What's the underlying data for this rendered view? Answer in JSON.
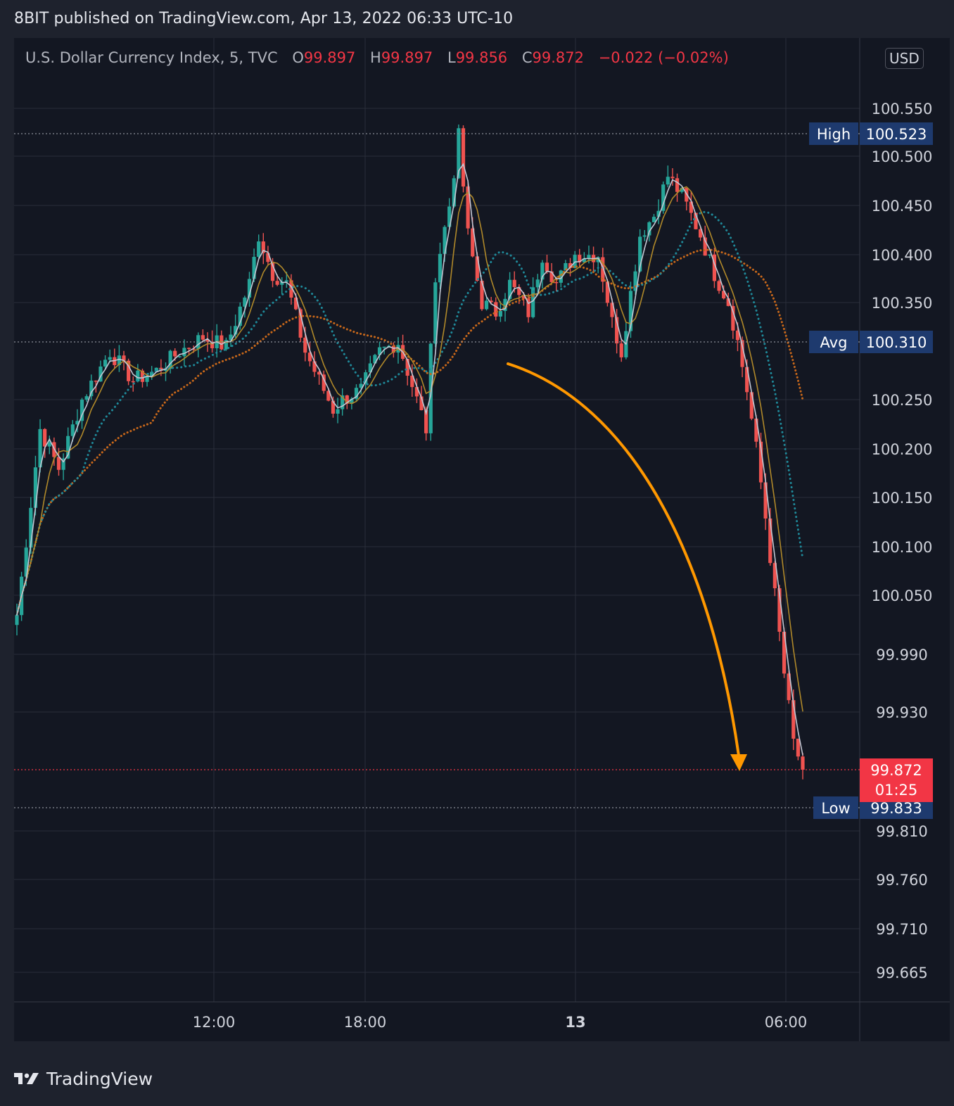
{
  "publish_line": "8BIT published on TradingView.com, Apr 13, 2022 06:33 UTC-10",
  "legend": {
    "symbol": "U.S. Dollar Currency Index, 5, TVC",
    "o_key": "O",
    "o": "99.897",
    "h_key": "H",
    "h": "99.897",
    "l_key": "L",
    "l": "99.856",
    "c_key": "C",
    "c": "99.872",
    "change": "−0.022 (−0.02%)"
  },
  "currency": "USD",
  "footer_brand": "TradingView",
  "colors": {
    "background": "#131722",
    "up": "#26a69a",
    "down": "#ef5350",
    "ma_fast": "#c3c8d4",
    "ma_slow": "#b0892a",
    "ma_teal": "#1f8a9a",
    "ma_orange": "#c9681a",
    "arrow": "#ff9800",
    "label_navy": "#1e3a6e",
    "last_price": "#f23645"
  },
  "chart_data": {
    "type": "candlestick",
    "title": "U.S. Dollar Currency Index, 5, TVC",
    "xlabel": "",
    "ylabel": "",
    "x_ticks": [
      "12:00",
      "18:00",
      "13",
      "06:00"
    ],
    "y_ticks": [
      "100.550",
      "100.500",
      "100.450",
      "100.400",
      "100.350",
      "100.250",
      "100.200",
      "100.150",
      "100.100",
      "100.050",
      "99.990",
      "99.930",
      "99.810",
      "99.760",
      "99.710",
      "99.665"
    ],
    "ylim": [
      99.64,
      100.61
    ],
    "grid": true,
    "markers": [
      {
        "label": "High",
        "value": "100.523"
      },
      {
        "label": "Avg",
        "value": "100.310"
      },
      {
        "label": "Low",
        "value": "99.833"
      }
    ],
    "last_price": {
      "value": "99.872",
      "countdown": "01:25"
    },
    "close_path": [
      [
        0,
        100.03
      ],
      [
        5,
        100.22
      ],
      [
        9,
        100.18
      ],
      [
        14,
        100.25
      ],
      [
        20,
        100.3
      ],
      [
        25,
        100.27
      ],
      [
        30,
        100.28
      ],
      [
        35,
        100.3
      ],
      [
        40,
        100.315
      ],
      [
        45,
        100.305
      ],
      [
        50,
        100.37
      ],
      [
        52,
        100.42
      ],
      [
        55,
        100.38
      ],
      [
        58,
        100.37
      ],
      [
        62,
        100.3
      ],
      [
        65,
        100.27
      ],
      [
        68,
        100.24
      ],
      [
        70,
        100.25
      ],
      [
        74,
        100.26
      ],
      [
        78,
        100.3
      ],
      [
        82,
        100.31
      ],
      [
        86,
        100.25
      ],
      [
        88,
        100.22
      ],
      [
        90,
        100.38
      ],
      [
        93,
        100.45
      ],
      [
        95,
        100.52
      ],
      [
        97,
        100.42
      ],
      [
        100,
        100.35
      ],
      [
        103,
        100.34
      ],
      [
        106,
        100.37
      ],
      [
        110,
        100.34
      ],
      [
        113,
        100.4
      ],
      [
        116,
        100.37
      ],
      [
        120,
        100.4
      ],
      [
        125,
        100.4
      ],
      [
        128,
        100.33
      ],
      [
        130,
        100.3
      ],
      [
        132,
        100.36
      ],
      [
        134,
        100.42
      ],
      [
        137,
        100.44
      ],
      [
        140,
        100.48
      ],
      [
        143,
        100.46
      ],
      [
        147,
        100.42
      ],
      [
        150,
        100.38
      ],
      [
        153,
        100.35
      ],
      [
        155,
        100.31
      ],
      [
        157,
        100.26
      ],
      [
        159,
        100.2
      ],
      [
        161,
        100.13
      ],
      [
        163,
        100.05
      ],
      [
        165,
        99.97
      ],
      [
        167,
        99.9
      ],
      [
        169,
        99.872
      ]
    ]
  }
}
